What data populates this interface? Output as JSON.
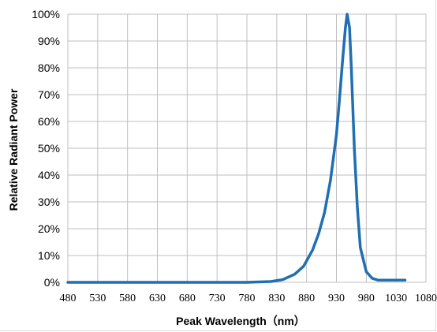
{
  "chart_data": {
    "type": "line",
    "xlabel": "Peak Wavelength（nm）",
    "ylabel": "Relative Radiant Power",
    "xlim": [
      480,
      1080
    ],
    "ylim": [
      0,
      100
    ],
    "x_ticks": [
      "480",
      "530",
      "580",
      "630",
      "680",
      "730",
      "780",
      "830",
      "880",
      "930",
      "980",
      "1030",
      "1080"
    ],
    "y_ticks": [
      "0%",
      "10%",
      "20%",
      "30%",
      "40%",
      "50%",
      "60%",
      "70%",
      "80%",
      "90%",
      "100%"
    ],
    "grid": true,
    "legend": "none",
    "series": [
      {
        "color": "#1f6fb2",
        "x": [
          480,
          780,
          820,
          840,
          860,
          875,
          890,
          900,
          910,
          920,
          930,
          935,
          940,
          945,
          948,
          952,
          955,
          960,
          965,
          970,
          980,
          990,
          1000,
          1045
        ],
        "y": [
          0,
          0,
          0.3,
          1,
          3,
          6,
          12,
          18,
          26,
          38,
          55,
          68,
          82,
          95,
          100,
          95,
          80,
          50,
          28,
          13,
          4,
          1.5,
          0.8,
          0.8
        ]
      }
    ]
  }
}
